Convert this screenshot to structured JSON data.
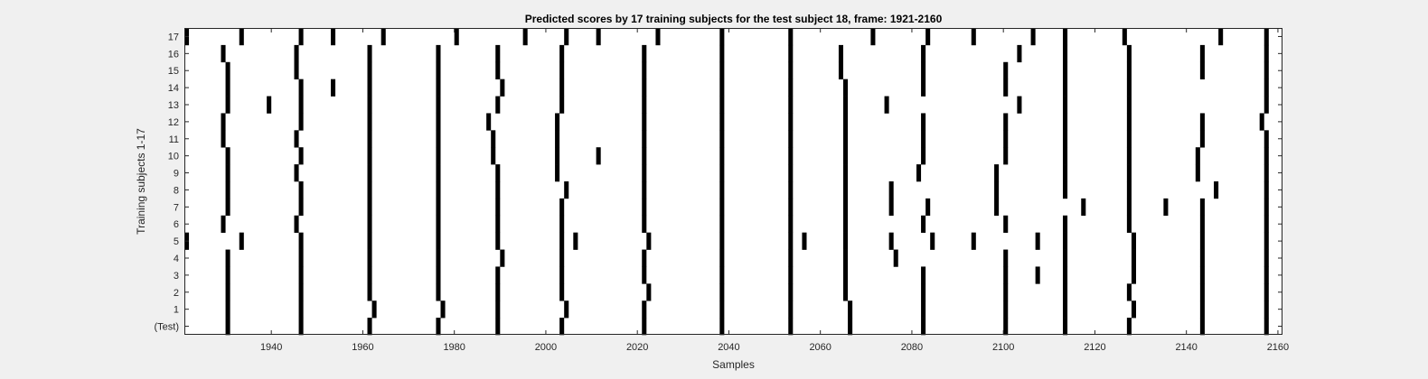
{
  "chart_data": {
    "type": "heatmap",
    "title": "Predicted scores by 17 training subjects for the test subject 18, frame: 1921-2160",
    "xlabel": "Samples",
    "ylabel": "Training subjects 1-17",
    "xlim": [
      1921,
      2160
    ],
    "xticks": [
      1940,
      1960,
      1980,
      2000,
      2020,
      2040,
      2060,
      2080,
      2100,
      2120,
      2140,
      2160
    ],
    "yticklabels": [
      "(Test)",
      "1",
      "2",
      "3",
      "4",
      "5",
      "6",
      "7",
      "8",
      "9",
      "10",
      "11",
      "12",
      "13",
      "14",
      "15",
      "16",
      "17"
    ],
    "colors": {
      "mark": "#000000",
      "background": "#ffffff",
      "figure": "#f0f0f0"
    },
    "grid": false,
    "rows": [
      {
        "label": "(Test)",
        "x": [
          1930,
          1946,
          1961,
          1976,
          1989,
          2003,
          2021,
          2038,
          2053,
          2066,
          2082,
          2100,
          2113,
          2127,
          2143,
          2157
        ]
      },
      {
        "label": "1",
        "x": [
          1930,
          1946,
          1962,
          1977,
          1989,
          2004,
          2021,
          2038,
          2053,
          2066,
          2082,
          2100,
          2113,
          2128,
          2143,
          2157
        ]
      },
      {
        "label": "2",
        "x": [
          1930,
          1946,
          1961,
          1976,
          1989,
          2003,
          2022,
          2038,
          2053,
          2065,
          2082,
          2100,
          2113,
          2127,
          2143,
          2157
        ]
      },
      {
        "label": "3",
        "x": [
          1930,
          1946,
          1961,
          1976,
          1989,
          2003,
          2021,
          2038,
          2053,
          2065,
          2082,
          2100,
          2107,
          2113,
          2128,
          2143,
          2157
        ]
      },
      {
        "label": "4",
        "x": [
          1930,
          1946,
          1961,
          1976,
          1990,
          2003,
          2021,
          2038,
          2053,
          2065,
          2076,
          2100,
          2113,
          2128,
          2143,
          2157
        ]
      },
      {
        "label": "5",
        "x": [
          1921,
          1933,
          1946,
          1961,
          1976,
          1989,
          2003,
          2006,
          2022,
          2038,
          2053,
          2056,
          2065,
          2075,
          2084,
          2093,
          2107,
          2113,
          2128,
          2143,
          2157
        ]
      },
      {
        "label": "6",
        "x": [
          1929,
          1945,
          1961,
          1976,
          1989,
          2003,
          2021,
          2038,
          2053,
          2065,
          2082,
          2100,
          2113,
          2127,
          2143,
          2157
        ]
      },
      {
        "label": "7",
        "x": [
          1930,
          1946,
          1961,
          1976,
          1989,
          2003,
          2021,
          2038,
          2053,
          2065,
          2075,
          2083,
          2098,
          2117,
          2127,
          2135,
          2143,
          2157
        ]
      },
      {
        "label": "8",
        "x": [
          1930,
          1946,
          1961,
          1976,
          1989,
          2004,
          2021,
          2038,
          2053,
          2065,
          2075,
          2098,
          2113,
          2127,
          2146,
          2157
        ]
      },
      {
        "label": "9",
        "x": [
          1930,
          1945,
          1961,
          1976,
          1989,
          2002,
          2021,
          2038,
          2053,
          2065,
          2081,
          2098,
          2113,
          2127,
          2142,
          2157
        ]
      },
      {
        "label": "10",
        "x": [
          1930,
          1946,
          1961,
          1976,
          1988,
          2002,
          2011,
          2021,
          2038,
          2053,
          2065,
          2082,
          2100,
          2113,
          2127,
          2142,
          2157
        ]
      },
      {
        "label": "11",
        "x": [
          1929,
          1945,
          1961,
          1976,
          1988,
          2002,
          2021,
          2038,
          2053,
          2065,
          2082,
          2100,
          2113,
          2127,
          2143,
          2157
        ]
      },
      {
        "label": "12",
        "x": [
          1929,
          1946,
          1961,
          1976,
          1987,
          2002,
          2021,
          2038,
          2053,
          2065,
          2082,
          2100,
          2113,
          2127,
          2143,
          2156
        ]
      },
      {
        "label": "13",
        "x": [
          1930,
          1939,
          1946,
          1961,
          1976,
          1989,
          2003,
          2021,
          2038,
          2053,
          2065,
          2074,
          2103,
          2113,
          2127,
          2157
        ]
      },
      {
        "label": "14",
        "x": [
          1930,
          1946,
          1953,
          1961,
          1976,
          1990,
          2003,
          2021,
          2038,
          2053,
          2065,
          2082,
          2100,
          2113,
          2127,
          2157
        ]
      },
      {
        "label": "15",
        "x": [
          1930,
          1945,
          1961,
          1976,
          1989,
          2003,
          2021,
          2038,
          2053,
          2064,
          2082,
          2100,
          2113,
          2127,
          2143,
          2157
        ]
      },
      {
        "label": "16",
        "x": [
          1929,
          1945,
          1961,
          1976,
          1989,
          2003,
          2021,
          2038,
          2053,
          2064,
          2082,
          2103,
          2113,
          2127,
          2143,
          2157
        ]
      },
      {
        "label": "17",
        "x": [
          1921,
          1933,
          1946,
          1953,
          1964,
          1980,
          1995,
          2004,
          2011,
          2024,
          2038,
          2053,
          2071,
          2083,
          2093,
          2106,
          2113,
          2126,
          2147,
          2157
        ]
      }
    ]
  }
}
